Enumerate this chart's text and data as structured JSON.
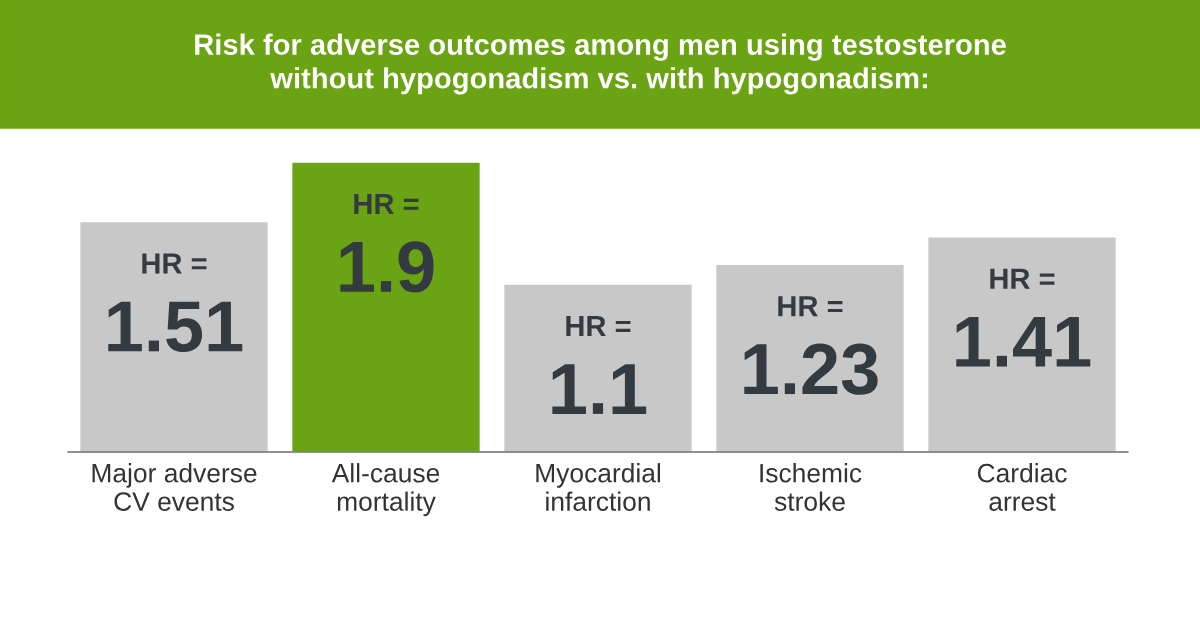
{
  "chart_data": {
    "type": "bar",
    "title": "Risk for adverse outcomes among men using testosterone\nwithout hypogonadism vs. with hypogonadism:",
    "categories": [
      "Major adverse\nCV events",
      "All-cause\nmortality",
      "Myocardial\ninfarction",
      "Ischemic\nstroke",
      "Cardiac\narrest"
    ],
    "values": [
      1.51,
      1.9,
      1.1,
      1.23,
      1.41
    ],
    "colors": [
      "#c8c8c8",
      "#6aa313",
      "#c8c8c8",
      "#c8c8c8",
      "#c8c8c8"
    ],
    "value_labels": [
      "HR =\n1.51",
      "HR =\n1.9",
      "HR =\n1.1",
      "HR =\n1.23",
      "HR =\n1.41"
    ],
    "grid": false,
    "legend": false
  }
}
